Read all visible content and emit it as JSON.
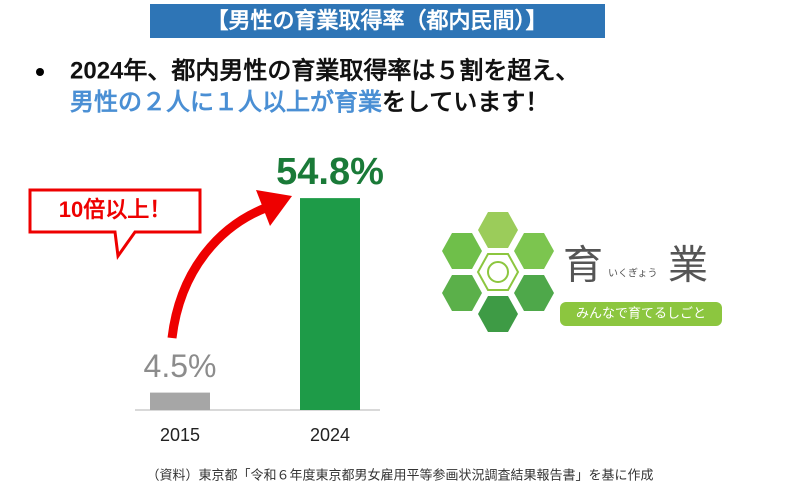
{
  "title": "【男性の育業取得率（都内民間）】",
  "bullet_line1": "2024年、都内男性の育業取得率は５割を超え、",
  "bullet_line2_highlight": "男性の２人に１人以上が育業",
  "bullet_line2_rest": "をしています！",
  "logo": {
    "main1": "育",
    "main2": "業",
    "reading": "いくぎょう",
    "tagline": "みんなで育てるしごと"
  },
  "source": "（資料）東京都「令和６年度東京都男女雇用平等参画状況調査結果報告書」を基に作成",
  "chart_data": {
    "type": "bar",
    "categories": [
      "2015",
      "2024"
    ],
    "values": [
      4.5,
      54.8
    ],
    "value_labels": [
      "4.5%",
      "54.8%"
    ],
    "colors": [
      "#a6a6a6",
      "#1e9b48"
    ],
    "label_colors": [
      "#8c8c8c",
      "#1a7a38"
    ],
    "ylim": [
      0,
      60
    ],
    "annotation": "10倍以上！"
  }
}
